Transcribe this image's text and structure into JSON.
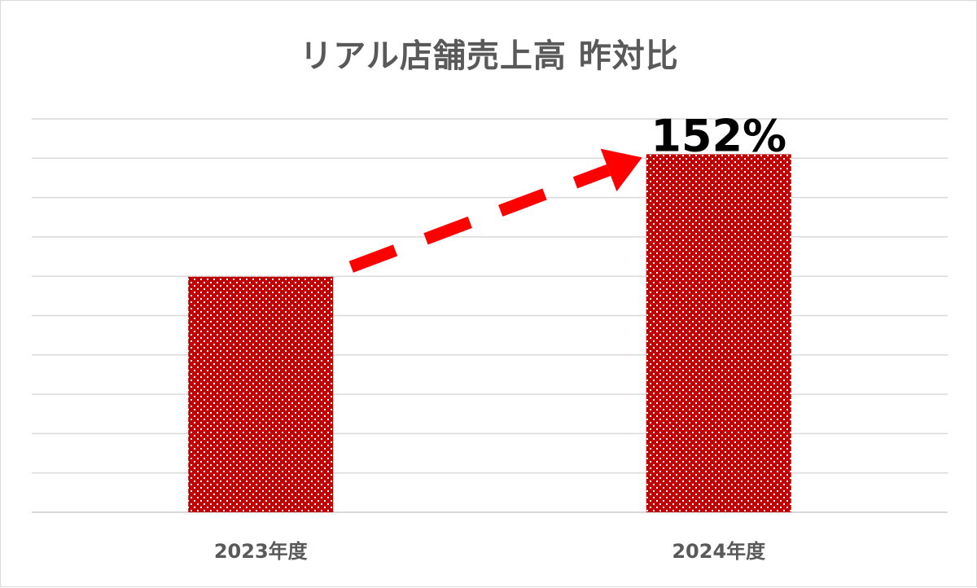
{
  "chart_data": {
    "type": "bar",
    "title": "リアル店舗売上高 昨対比",
    "categories": [
      "2023年度",
      "2024年度"
    ],
    "values": [
      100,
      152
    ],
    "data_labels": [
      "",
      "152%"
    ],
    "ylim": [
      0,
      167
    ],
    "grid": true,
    "legend": "none",
    "annotation": "dashed-arrow-increase",
    "colors": {
      "bar": "#c00000",
      "arrow": "#ff0000",
      "grid": "#d9d9d9",
      "text": "#595959"
    }
  }
}
